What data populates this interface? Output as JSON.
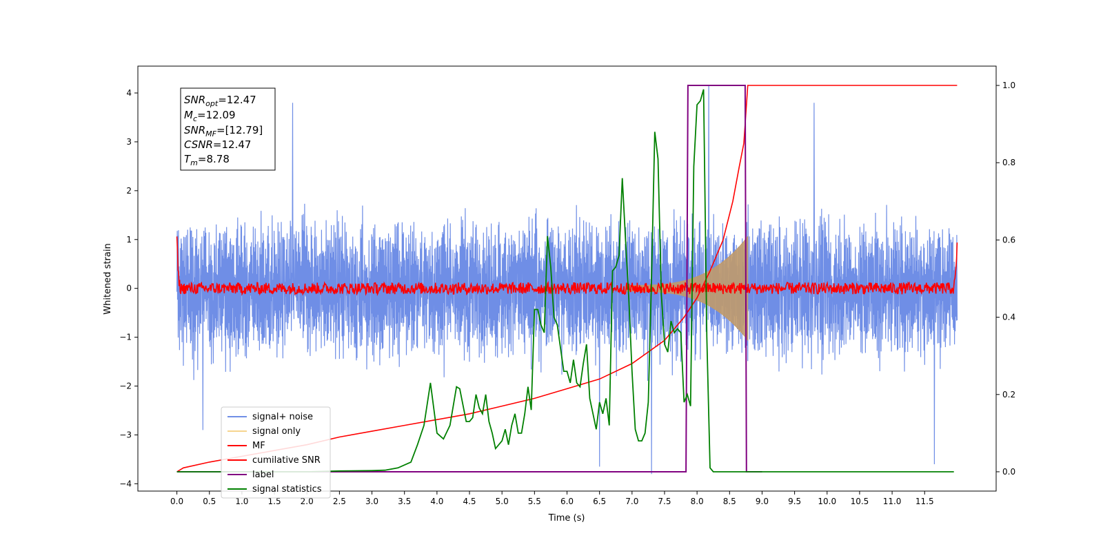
{
  "chart_data": {
    "type": "line",
    "xlabel": "Time (s)",
    "ylabel": "Whitened strain",
    "xlim": [
      -0.6,
      12.6
    ],
    "ylim": [
      -4.15,
      4.55
    ],
    "y2lim": [
      -0.05,
      1.05
    ],
    "xticks": [
      "0.0",
      "0.5",
      "1.0",
      "1.5",
      "2.0",
      "2.5",
      "3.0",
      "3.5",
      "4.0",
      "4.5",
      "5.0",
      "5.5",
      "6.0",
      "6.5",
      "7.0",
      "7.5",
      "8.0",
      "8.5",
      "9.0",
      "9.5",
      "10.0",
      "10.5",
      "11.0",
      "11.5"
    ],
    "yticks": [
      "4",
      "3",
      "2",
      "1",
      "0",
      "−1",
      "−2",
      "−3",
      "−4"
    ],
    "y2ticks": [
      "1.0",
      "0.8",
      "0.6",
      "0.4",
      "0.2",
      "0.0"
    ],
    "legend_position": "lower-left",
    "legend": [
      "signal+ noise",
      "signal only",
      "MF",
      "cumilative SNR",
      "label",
      "signal statistics"
    ],
    "colors": {
      "noise": "#6f8ee6",
      "signal": "#c09a6a",
      "signal_legend": "#f6d48e",
      "mf": "#ff0000",
      "csnr": "#ff0000",
      "label": "#800080",
      "stats": "#008000"
    },
    "annotation": {
      "snr_opt_prefix": "SNR",
      "snr_opt_sub": "opt",
      "snr_opt_value": "=12.47",
      "mc_prefix": "M",
      "mc_sub": "c",
      "mc_value": "=12.09",
      "snr_mf_prefix": "SNR",
      "snr_mf_sub": "MF",
      "snr_mf_value": "=[12.79]",
      "csnr_prefix": "CSNR",
      "csnr_value": "=12.47",
      "tm_prefix": "T",
      "tm_sub": "m",
      "tm_value": "=8.78"
    },
    "series": [
      {
        "name": "signal+ noise",
        "axis": "left",
        "x_range": [
          0,
          12
        ],
        "amplitude_typical": [
          -1.9,
          2.1
        ],
        "spikes": [
          [
            1.78,
            3.8
          ],
          [
            8.18,
            4.15
          ],
          [
            9.8,
            3.8
          ],
          [
            7.3,
            -3.8
          ],
          [
            11.65,
            -3.6
          ],
          [
            0.4,
            -2.9
          ],
          [
            6.5,
            -3.65
          ]
        ]
      },
      {
        "name": "signal only",
        "axis": "left",
        "x_range": [
          6.9,
          8.78
        ],
        "envelope_end": 1.0
      },
      {
        "name": "MF",
        "axis": "left",
        "x": [
          0,
          0.02,
          0.05,
          11.95,
          11.98,
          12.0
        ],
        "y": [
          1.0,
          0.3,
          0.0,
          0.0,
          0.3,
          0.85
        ],
        "noise_amplitude": 0.12
      },
      {
        "name": "cumilative SNR",
        "axis": "right",
        "x": [
          0,
          0.1,
          0.5,
          1,
          1.5,
          2,
          2.5,
          3,
          3.5,
          4,
          4.5,
          5,
          5.5,
          6,
          6.5,
          7,
          7.5,
          7.8,
          8.0,
          8.2,
          8.4,
          8.55,
          8.65,
          8.72,
          8.78,
          8.8,
          9.0,
          12.0
        ],
        "y": [
          0.0,
          0.01,
          0.025,
          0.04,
          0.055,
          0.07,
          0.09,
          0.105,
          0.12,
          0.135,
          0.15,
          0.17,
          0.19,
          0.215,
          0.24,
          0.28,
          0.34,
          0.4,
          0.45,
          0.52,
          0.6,
          0.7,
          0.79,
          0.85,
          1.0,
          1.0,
          1.0,
          1.0
        ]
      },
      {
        "name": "label",
        "axis": "right",
        "x": [
          0,
          7.83,
          7.86,
          8.74,
          8.76,
          9.0
        ],
        "y": [
          0.0,
          0.0,
          1.0,
          1.0,
          0.0,
          0.0
        ]
      },
      {
        "name": "signal statistics",
        "axis": "right",
        "x": [
          0,
          1.0,
          2.0,
          2.5,
          3.0,
          3.2,
          3.4,
          3.6,
          3.7,
          3.8,
          3.9,
          4.0,
          4.1,
          4.2,
          4.3,
          4.35,
          4.45,
          4.5,
          4.55,
          4.6,
          4.65,
          4.7,
          4.75,
          4.8,
          4.85,
          4.9,
          5.0,
          5.05,
          5.1,
          5.15,
          5.2,
          5.25,
          5.3,
          5.35,
          5.4,
          5.45,
          5.5,
          5.55,
          5.6,
          5.65,
          5.7,
          5.75,
          5.8,
          5.85,
          5.9,
          5.95,
          6.0,
          6.05,
          6.1,
          6.15,
          6.2,
          6.25,
          6.3,
          6.35,
          6.4,
          6.45,
          6.5,
          6.55,
          6.6,
          6.65,
          6.7,
          6.75,
          6.8,
          6.85,
          6.9,
          6.95,
          7.0,
          7.05,
          7.1,
          7.15,
          7.2,
          7.25,
          7.3,
          7.35,
          7.4,
          7.45,
          7.5,
          7.55,
          7.6,
          7.65,
          7.7,
          7.75,
          7.8,
          7.85,
          7.9,
          7.95,
          8.0,
          8.05,
          8.1,
          8.15,
          8.2,
          8.25,
          8.3,
          8.35,
          8.4,
          8.45,
          8.5,
          8.55,
          8.6,
          8.65,
          8.7,
          8.75,
          8.8,
          8.85,
          8.9,
          9.0,
          10.0,
          11.0,
          11.95
        ],
        "y": [
          0.0,
          0.0,
          0.0,
          0.002,
          0.003,
          0.004,
          0.01,
          0.025,
          0.07,
          0.12,
          0.23,
          0.1,
          0.085,
          0.12,
          0.22,
          0.215,
          0.13,
          0.13,
          0.14,
          0.2,
          0.165,
          0.15,
          0.2,
          0.13,
          0.1,
          0.06,
          0.08,
          0.11,
          0.07,
          0.12,
          0.15,
          0.1,
          0.1,
          0.15,
          0.22,
          0.16,
          0.42,
          0.42,
          0.38,
          0.36,
          0.61,
          0.53,
          0.4,
          0.38,
          0.32,
          0.26,
          0.26,
          0.23,
          0.29,
          0.23,
          0.22,
          0.28,
          0.33,
          0.19,
          0.15,
          0.11,
          0.18,
          0.15,
          0.19,
          0.12,
          0.52,
          0.53,
          0.56,
          0.76,
          0.6,
          0.45,
          0.26,
          0.11,
          0.08,
          0.08,
          0.1,
          0.18,
          0.5,
          0.88,
          0.81,
          0.46,
          0.33,
          0.31,
          0.39,
          0.36,
          0.37,
          0.36,
          0.18,
          0.2,
          0.17,
          0.79,
          0.95,
          0.96,
          0.99,
          0.35,
          0.01,
          0.0,
          0.0,
          0.0,
          0.0,
          0.0,
          0.0,
          0.0,
          0.0,
          0.0,
          0.0,
          0.0,
          0.0,
          0.0,
          0.0,
          0.0,
          0.0,
          0.0,
          0.0
        ]
      }
    ]
  }
}
